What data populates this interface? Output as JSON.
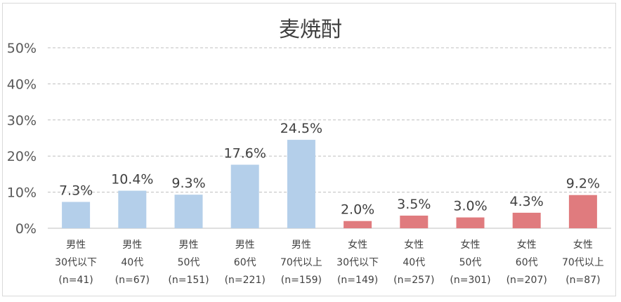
{
  "chart_data": {
    "type": "bar",
    "title": "麦焼酎",
    "ylim": [
      0,
      50
    ],
    "yticks": [
      "0%",
      "10%",
      "20%",
      "30%",
      "40%",
      "50%"
    ],
    "grid": true,
    "categories": [
      [
        "男性",
        "30代以下",
        "(n=41)"
      ],
      [
        "男性",
        "40代",
        "(n=67)"
      ],
      [
        "男性",
        "50代",
        "(n=151)"
      ],
      [
        "男性",
        "60代",
        "(n=221)"
      ],
      [
        "男性",
        "70代以上",
        "(n=159)"
      ],
      [
        "女性",
        "30代以下",
        "(n=149)"
      ],
      [
        "女性",
        "40代",
        "(n=257)"
      ],
      [
        "女性",
        "50代",
        "(n=301)"
      ],
      [
        "女性",
        "60代",
        "(n=207)"
      ],
      [
        "女性",
        "70代以上",
        "(n=87)"
      ]
    ],
    "values": [
      7.3,
      10.4,
      9.3,
      17.6,
      24.5,
      2.0,
      3.5,
      3.0,
      4.3,
      9.2
    ],
    "data_labels": [
      "7.3%",
      "10.4%",
      "9.3%",
      "17.6%",
      "24.5%",
      "2.0%",
      "3.5%",
      "3.0%",
      "4.3%",
      "9.2%"
    ],
    "colors": {
      "male": "#b4cfea",
      "female": "#e07b7e"
    },
    "bar_color_keys": [
      "male",
      "male",
      "male",
      "male",
      "male",
      "female",
      "female",
      "female",
      "female",
      "female"
    ]
  }
}
